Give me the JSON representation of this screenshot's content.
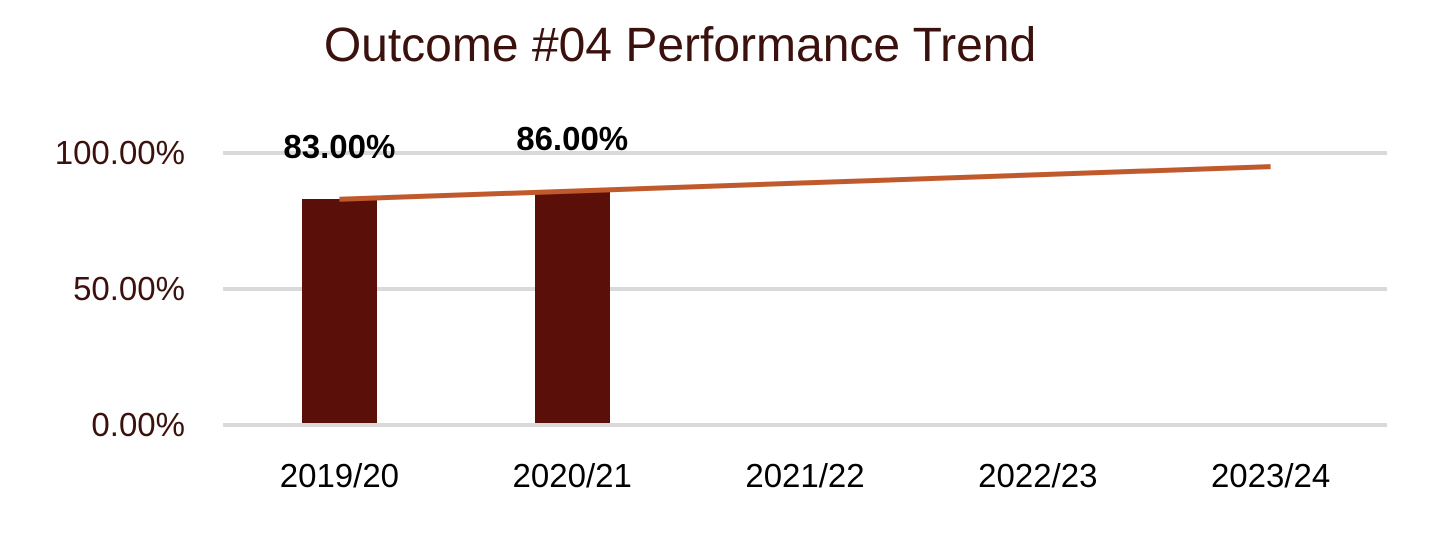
{
  "chart": {
    "title": "Outcome #04 Performance Trend"
  },
  "chart_data": {
    "type": "bar",
    "title": "Outcome #04 Performance Trend",
    "categories": [
      "2019/20",
      "2020/21",
      "2021/22",
      "2022/23",
      "2023/24"
    ],
    "series": [
      {
        "name": "performance-bars",
        "type": "bar",
        "color": "#5a0f08",
        "values": [
          83,
          86,
          null,
          null,
          null
        ],
        "data_labels": [
          "83.00%",
          "86.00%",
          "",
          "",
          ""
        ]
      },
      {
        "name": "linear-trend-line",
        "type": "line",
        "color": "#c05a2c",
        "values": [
          83,
          86,
          89,
          92,
          95
        ]
      }
    ],
    "xlabel": "",
    "ylabel": "",
    "ylim": [
      0,
      100
    ],
    "yticks": [
      {
        "value": 0,
        "label": "0.00%"
      },
      {
        "value": 50,
        "label": "50.00%"
      },
      {
        "value": 100,
        "label": "100.00%"
      }
    ],
    "grid": true,
    "legend_position": "none"
  },
  "colors": {
    "title_text": "#3b110d",
    "axis_tick_text": "#3b110d",
    "category_text": "#000000",
    "data_label_text": "#000000",
    "bar_fill": "#5a0f08",
    "trend_line": "#c05a2c",
    "gridline": "#d9d9d9",
    "background": "#ffffff"
  }
}
